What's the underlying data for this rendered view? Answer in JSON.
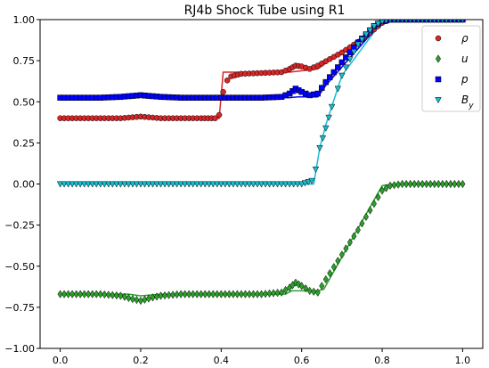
{
  "chart_data": {
    "type": "scatter",
    "title": "RJ4b Shock Tube using R1",
    "xlabel": "",
    "ylabel": "",
    "xlim": [
      -0.05,
      1.05
    ],
    "ylim": [
      -1.0,
      1.0
    ],
    "x_ticks": [
      0.0,
      0.2,
      0.4,
      0.6,
      0.8,
      1.0
    ],
    "x_tick_labels": [
      "0.0",
      "0.2",
      "0.4",
      "0.6",
      "0.8",
      "1.0"
    ],
    "y_ticks": [
      -1.0,
      -0.75,
      -0.5,
      -0.25,
      0.0,
      0.25,
      0.5,
      0.75,
      1.0
    ],
    "y_tick_labels": [
      "−1.00",
      "−0.75",
      "−0.50",
      "−0.25",
      "0.00",
      "0.25",
      "0.50",
      "0.75",
      "1.00"
    ],
    "grid": false,
    "legend_position": "top-right",
    "series": [
      {
        "name": "ρ",
        "marker": "circle",
        "color": "#d62728",
        "line_color": "#d62728",
        "points": [
          [
            0.0,
            0.4
          ],
          [
            0.1,
            0.4
          ],
          [
            0.15,
            0.4
          ],
          [
            0.2,
            0.41
          ],
          [
            0.25,
            0.4
          ],
          [
            0.3,
            0.4
          ],
          [
            0.35,
            0.4
          ],
          [
            0.385,
            0.4
          ],
          [
            0.395,
            0.42
          ],
          [
            0.405,
            0.56
          ],
          [
            0.415,
            0.63
          ],
          [
            0.425,
            0.655
          ],
          [
            0.45,
            0.67
          ],
          [
            0.5,
            0.675
          ],
          [
            0.55,
            0.68
          ],
          [
            0.57,
            0.7
          ],
          [
            0.585,
            0.72
          ],
          [
            0.6,
            0.715
          ],
          [
            0.62,
            0.7
          ],
          [
            0.64,
            0.72
          ],
          [
            0.7,
            0.8
          ],
          [
            0.75,
            0.88
          ],
          [
            0.78,
            0.94
          ],
          [
            0.8,
            0.98
          ],
          [
            0.82,
            1.0
          ],
          [
            0.9,
            1.0
          ],
          [
            1.0,
            1.0
          ]
        ],
        "line": [
          [
            0.0,
            0.4
          ],
          [
            0.395,
            0.4
          ],
          [
            0.405,
            0.68
          ],
          [
            0.56,
            0.68
          ],
          [
            0.57,
            0.68
          ],
          [
            0.64,
            0.7
          ],
          [
            0.8,
            0.98
          ],
          [
            0.82,
            1.0
          ],
          [
            1.0,
            1.0
          ]
        ]
      },
      {
        "name": "u",
        "marker": "diamond",
        "color": "#2ca02c",
        "line_color": "#2ca02c",
        "points": [
          [
            0.0,
            -0.67
          ],
          [
            0.1,
            -0.67
          ],
          [
            0.15,
            -0.68
          ],
          [
            0.18,
            -0.7
          ],
          [
            0.2,
            -0.71
          ],
          [
            0.23,
            -0.69
          ],
          [
            0.25,
            -0.68
          ],
          [
            0.3,
            -0.67
          ],
          [
            0.4,
            -0.67
          ],
          [
            0.5,
            -0.67
          ],
          [
            0.55,
            -0.66
          ],
          [
            0.57,
            -0.63
          ],
          [
            0.585,
            -0.6
          ],
          [
            0.6,
            -0.62
          ],
          [
            0.62,
            -0.65
          ],
          [
            0.64,
            -0.66
          ],
          [
            0.66,
            -0.58
          ],
          [
            0.7,
            -0.43
          ],
          [
            0.74,
            -0.28
          ],
          [
            0.78,
            -0.12
          ],
          [
            0.8,
            -0.04
          ],
          [
            0.82,
            -0.01
          ],
          [
            0.85,
            0.0
          ],
          [
            0.9,
            0.0
          ],
          [
            1.0,
            0.0
          ]
        ],
        "line": [
          [
            0.0,
            -0.67
          ],
          [
            0.17,
            -0.67
          ],
          [
            0.2,
            -0.68
          ],
          [
            0.25,
            -0.67
          ],
          [
            0.56,
            -0.67
          ],
          [
            0.575,
            -0.65
          ],
          [
            0.64,
            -0.65
          ],
          [
            0.655,
            -0.64
          ],
          [
            0.8,
            -0.01
          ],
          [
            0.83,
            0.0
          ],
          [
            1.0,
            0.0
          ]
        ]
      },
      {
        "name": "p",
        "marker": "square",
        "color": "#0000ff",
        "line_color": "#0000ff",
        "points": [
          [
            0.0,
            0.525
          ],
          [
            0.1,
            0.525
          ],
          [
            0.15,
            0.53
          ],
          [
            0.2,
            0.54
          ],
          [
            0.25,
            0.53
          ],
          [
            0.3,
            0.525
          ],
          [
            0.4,
            0.525
          ],
          [
            0.5,
            0.525
          ],
          [
            0.55,
            0.53
          ],
          [
            0.57,
            0.55
          ],
          [
            0.585,
            0.58
          ],
          [
            0.6,
            0.56
          ],
          [
            0.62,
            0.54
          ],
          [
            0.64,
            0.55
          ],
          [
            0.66,
            0.62
          ],
          [
            0.7,
            0.74
          ],
          [
            0.74,
            0.86
          ],
          [
            0.78,
            0.96
          ],
          [
            0.8,
            0.99
          ],
          [
            0.82,
            1.0
          ],
          [
            0.9,
            1.0
          ],
          [
            1.0,
            1.0
          ]
        ],
        "line": [
          [
            0.0,
            0.525
          ],
          [
            0.16,
            0.525
          ],
          [
            0.2,
            0.535
          ],
          [
            0.25,
            0.525
          ],
          [
            0.57,
            0.525
          ],
          [
            0.59,
            0.53
          ],
          [
            0.64,
            0.53
          ],
          [
            0.66,
            0.6
          ],
          [
            0.8,
            0.99
          ],
          [
            0.82,
            1.0
          ],
          [
            1.0,
            1.0
          ]
        ]
      },
      {
        "name": "B_y",
        "marker": "triangle-down",
        "color": "#17becf",
        "line_color": "#17becf",
        "points": [
          [
            0.0,
            0.0
          ],
          [
            0.1,
            0.0
          ],
          [
            0.2,
            0.0
          ],
          [
            0.3,
            0.0
          ],
          [
            0.4,
            0.0
          ],
          [
            0.5,
            0.0
          ],
          [
            0.55,
            0.0
          ],
          [
            0.6,
            0.0
          ],
          [
            0.625,
            0.02
          ],
          [
            0.635,
            0.09
          ],
          [
            0.645,
            0.22
          ],
          [
            0.66,
            0.34
          ],
          [
            0.675,
            0.47
          ],
          [
            0.69,
            0.58
          ],
          [
            0.7,
            0.66
          ],
          [
            0.72,
            0.76
          ],
          [
            0.74,
            0.85
          ],
          [
            0.76,
            0.91
          ],
          [
            0.78,
            0.96
          ],
          [
            0.8,
            0.99
          ],
          [
            0.82,
            1.0
          ],
          [
            0.9,
            1.0
          ],
          [
            1.0,
            1.0
          ]
        ],
        "line": [
          [
            0.0,
            0.0
          ],
          [
            0.63,
            0.0
          ],
          [
            0.645,
            0.22
          ],
          [
            0.66,
            0.36
          ],
          [
            0.7,
            0.66
          ],
          [
            0.8,
            0.99
          ],
          [
            0.82,
            1.0
          ],
          [
            1.0,
            1.0
          ]
        ]
      }
    ]
  }
}
